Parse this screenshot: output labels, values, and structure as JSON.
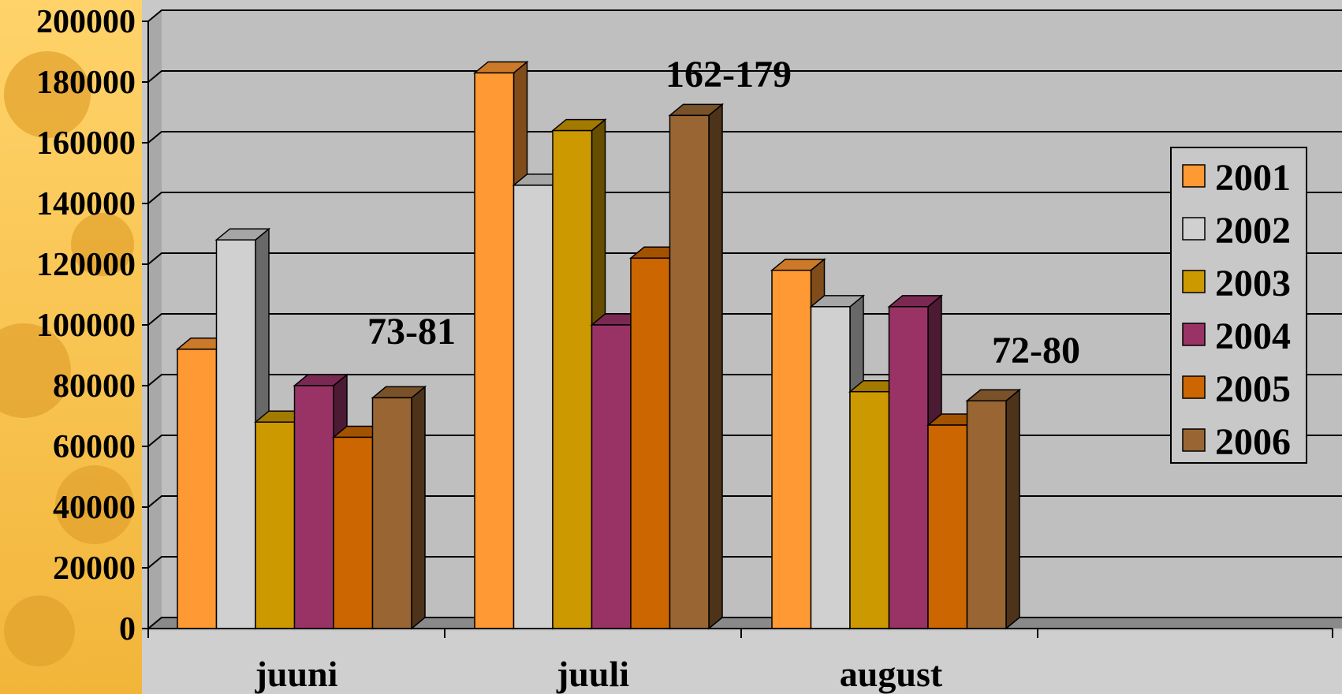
{
  "chart_data": {
    "type": "bar",
    "style": "3d-clustered-column",
    "categories": [
      "juuni",
      "juuli",
      "august"
    ],
    "series": [
      {
        "name": "2001",
        "color": "#ff9933",
        "values": [
          92000,
          183000,
          118000
        ]
      },
      {
        "name": "2002",
        "color": "#d0d0d0",
        "values": [
          128000,
          146000,
          106000
        ]
      },
      {
        "name": "2003",
        "color": "#cc9900",
        "values": [
          68000,
          164000,
          78000
        ]
      },
      {
        "name": "2004",
        "color": "#993366",
        "values": [
          80000,
          100000,
          106000
        ]
      },
      {
        "name": "2005",
        "color": "#cc6600",
        "values": [
          63000,
          122000,
          67000
        ]
      },
      {
        "name": "2006",
        "color": "#996633",
        "values": [
          76000,
          169000,
          75000
        ]
      }
    ],
    "ylim": [
      0,
      200000
    ],
    "yticks": [
      "200000",
      "180000",
      "160000",
      "140000",
      "120000",
      "100000",
      "80000",
      "60000",
      "40000",
      "20000",
      "0"
    ],
    "ytick_values": [
      200000,
      180000,
      160000,
      140000,
      120000,
      100000,
      80000,
      60000,
      40000,
      20000,
      0
    ],
    "annotations": [
      {
        "text": "73-81",
        "category": "juuni"
      },
      {
        "text": "162-179",
        "category": "juuli"
      },
      {
        "text": "72-80",
        "category": "august"
      }
    ],
    "grid": true,
    "legend_position": "right"
  }
}
